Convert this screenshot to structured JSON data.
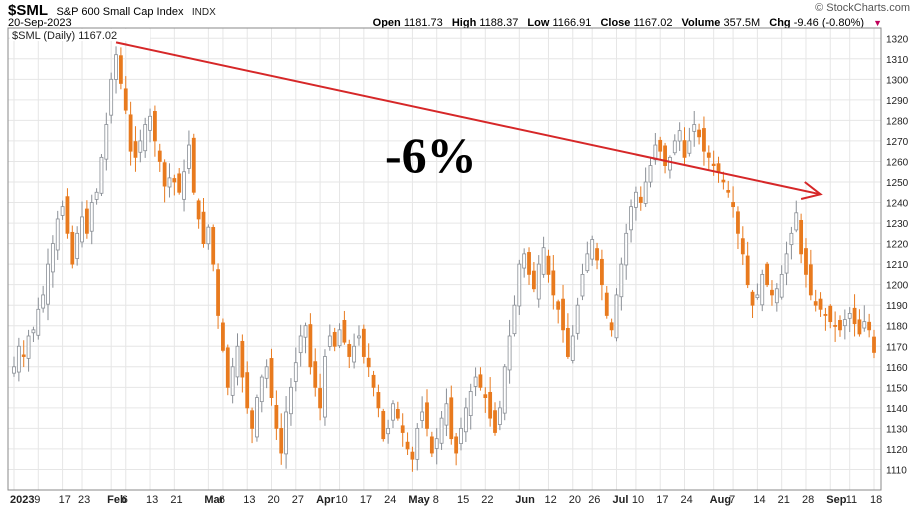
{
  "header": {
    "symbol": "$SML",
    "name": "S&P 600 Small Cap Index",
    "exchange": "INDX",
    "date": "20-Sep-2023",
    "watermark": "© StockCharts.com",
    "open_label": "Open",
    "open": "1181.73",
    "high_label": "High",
    "high": "1188.37",
    "low_label": "Low",
    "low": "1166.91",
    "close_label": "Close",
    "close": "1167.02",
    "volume_label": "Volume",
    "volume": "357.5M",
    "chg_label": "Chg",
    "chg": "-9.46 (-0.80%)"
  },
  "colors": {
    "up": "#b8bcc2",
    "down": "#e87a1e",
    "arrow": "#d62728",
    "grid": "#e6e6e6"
  },
  "chart_data": {
    "type": "candlestick",
    "legend": "$SML (Daily) 1167.02",
    "annotation": "-6%",
    "ylim": [
      1100,
      1325
    ],
    "y_ticks": [
      1110,
      1120,
      1130,
      1140,
      1150,
      1160,
      1170,
      1180,
      1190,
      1200,
      1210,
      1220,
      1230,
      1240,
      1250,
      1260,
      1270,
      1280,
      1290,
      1300,
      1310,
      1320
    ],
    "x_tick_labels": [
      {
        "label": "2023",
        "bold": true,
        "bar": 0
      },
      {
        "label": "9",
        "bar": 5
      },
      {
        "label": "17",
        "bar": 10
      },
      {
        "label": "23",
        "bar": 14
      },
      {
        "label": "Feb",
        "bold": true,
        "bar": 20
      },
      {
        "label": "6",
        "bar": 23
      },
      {
        "label": "13",
        "bar": 28
      },
      {
        "label": "21",
        "bar": 33
      },
      {
        "label": "Mar",
        "bold": true,
        "bar": 40
      },
      {
        "label": "6",
        "bar": 43
      },
      {
        "label": "13",
        "bar": 48
      },
      {
        "label": "20",
        "bar": 53
      },
      {
        "label": "27",
        "bar": 58
      },
      {
        "label": "Apr",
        "bold": true,
        "bar": 63
      },
      {
        "label": "10",
        "bar": 67
      },
      {
        "label": "17",
        "bar": 72
      },
      {
        "label": "24",
        "bar": 77
      },
      {
        "label": "May",
        "bold": true,
        "bar": 82
      },
      {
        "label": "8",
        "bar": 87
      },
      {
        "label": "15",
        "bar": 92
      },
      {
        "label": "22",
        "bar": 97
      },
      {
        "label": "Jun",
        "bold": true,
        "bar": 104
      },
      {
        "label": "12",
        "bar": 110
      },
      {
        "label": "20",
        "bar": 115
      },
      {
        "label": "26",
        "bar": 119
      },
      {
        "label": "Jul",
        "bold": true,
        "bar": 124
      },
      {
        "label": "10",
        "bar": 128
      },
      {
        "label": "17",
        "bar": 133
      },
      {
        "label": "24",
        "bar": 138
      },
      {
        "label": "Aug",
        "bold": true,
        "bar": 144
      },
      {
        "label": "7",
        "bar": 148
      },
      {
        "label": "14",
        "bar": 153
      },
      {
        "label": "21",
        "bar": 158
      },
      {
        "label": "28",
        "bar": 163
      },
      {
        "label": "Sep",
        "bold": true,
        "bar": 168
      },
      {
        "label": "11",
        "bar": 172
      },
      {
        "label": "18",
        "bar": 177
      }
    ],
    "trendline": {
      "from": {
        "bar": 21,
        "value": 1318
      },
      "to": {
        "bar": 166,
        "value": 1244
      }
    },
    "anchors": [
      [
        0,
        1160
      ],
      [
        1,
        1170
      ],
      [
        2,
        1165
      ],
      [
        3,
        1175
      ],
      [
        4,
        1178
      ],
      [
        5,
        1188
      ],
      [
        6,
        1195
      ],
      [
        7,
        1210
      ],
      [
        8,
        1220
      ],
      [
        9,
        1232
      ],
      [
        10,
        1238
      ],
      [
        11,
        1225
      ],
      [
        12,
        1210
      ],
      [
        13,
        1225
      ],
      [
        14,
        1233
      ],
      [
        15,
        1225
      ],
      [
        16,
        1240
      ],
      [
        17,
        1245
      ],
      [
        18,
        1262
      ],
      [
        19,
        1278
      ],
      [
        20,
        1300
      ],
      [
        21,
        1312
      ],
      [
        22,
        1298
      ],
      [
        23,
        1285
      ],
      [
        24,
        1265
      ],
      [
        25,
        1262
      ],
      [
        26,
        1270
      ],
      [
        27,
        1278
      ],
      [
        28,
        1282
      ],
      [
        29,
        1270
      ],
      [
        30,
        1260
      ],
      [
        31,
        1248
      ],
      [
        32,
        1252
      ],
      [
        33,
        1250
      ],
      [
        34,
        1245
      ],
      [
        35,
        1255
      ],
      [
        36,
        1268
      ],
      [
        37,
        1245
      ],
      [
        38,
        1232
      ],
      [
        39,
        1220
      ],
      [
        40,
        1228
      ],
      [
        41,
        1210
      ],
      [
        42,
        1185
      ],
      [
        43,
        1168
      ],
      [
        44,
        1150
      ],
      [
        45,
        1160
      ],
      [
        46,
        1170
      ],
      [
        47,
        1155
      ],
      [
        48,
        1140
      ],
      [
        49,
        1130
      ],
      [
        50,
        1145
      ],
      [
        51,
        1155
      ],
      [
        52,
        1160
      ],
      [
        53,
        1145
      ],
      [
        54,
        1130
      ],
      [
        55,
        1118
      ],
      [
        56,
        1138
      ],
      [
        57,
        1150
      ],
      [
        58,
        1162
      ],
      [
        59,
        1175
      ],
      [
        60,
        1180
      ],
      [
        61,
        1160
      ],
      [
        62,
        1150
      ],
      [
        63,
        1140
      ],
      [
        64,
        1165
      ],
      [
        65,
        1175
      ],
      [
        66,
        1170
      ],
      [
        67,
        1178
      ],
      [
        68,
        1172
      ],
      [
        69,
        1165
      ],
      [
        70,
        1170
      ],
      [
        71,
        1175
      ],
      [
        72,
        1165
      ],
      [
        73,
        1160
      ],
      [
        74,
        1150
      ],
      [
        75,
        1140
      ],
      [
        76,
        1125
      ],
      [
        77,
        1130
      ],
      [
        78,
        1142
      ],
      [
        79,
        1135
      ],
      [
        80,
        1128
      ],
      [
        81,
        1120
      ],
      [
        82,
        1115
      ],
      [
        83,
        1130
      ],
      [
        84,
        1138
      ],
      [
        85,
        1130
      ],
      [
        86,
        1118
      ],
      [
        87,
        1125
      ],
      [
        88,
        1135
      ],
      [
        89,
        1142
      ],
      [
        90,
        1125
      ],
      [
        91,
        1118
      ],
      [
        92,
        1130
      ],
      [
        93,
        1140
      ],
      [
        94,
        1148
      ],
      [
        95,
        1155
      ],
      [
        96,
        1150
      ],
      [
        97,
        1145
      ],
      [
        98,
        1135
      ],
      [
        99,
        1128
      ],
      [
        100,
        1140
      ],
      [
        101,
        1160
      ],
      [
        102,
        1175
      ],
      [
        103,
        1190
      ],
      [
        104,
        1210
      ],
      [
        105,
        1215
      ],
      [
        106,
        1205
      ],
      [
        107,
        1198
      ],
      [
        108,
        1210
      ],
      [
        109,
        1218
      ],
      [
        110,
        1205
      ],
      [
        111,
        1195
      ],
      [
        112,
        1188
      ],
      [
        113,
        1178
      ],
      [
        114,
        1165
      ],
      [
        115,
        1175
      ],
      [
        116,
        1190
      ],
      [
        117,
        1205
      ],
      [
        118,
        1215
      ],
      [
        119,
        1222
      ],
      [
        120,
        1212
      ],
      [
        121,
        1200
      ],
      [
        122,
        1185
      ],
      [
        123,
        1178
      ],
      [
        124,
        1195
      ],
      [
        125,
        1210
      ],
      [
        126,
        1225
      ],
      [
        127,
        1238
      ],
      [
        128,
        1245
      ],
      [
        129,
        1240
      ],
      [
        130,
        1250
      ],
      [
        131,
        1258
      ],
      [
        132,
        1268
      ],
      [
        133,
        1265
      ],
      [
        134,
        1258
      ],
      [
        135,
        1262
      ],
      [
        136,
        1270
      ],
      [
        137,
        1275
      ],
      [
        138,
        1262
      ],
      [
        139,
        1270
      ],
      [
        140,
        1278
      ],
      [
        141,
        1272
      ],
      [
        142,
        1265
      ],
      [
        143,
        1262
      ],
      [
        144,
        1258
      ],
      [
        145,
        1255
      ],
      [
        146,
        1250
      ],
      [
        147,
        1245
      ],
      [
        148,
        1238
      ],
      [
        149,
        1225
      ],
      [
        150,
        1215
      ],
      [
        151,
        1200
      ],
      [
        152,
        1190
      ],
      [
        153,
        1195
      ],
      [
        154,
        1205
      ],
      [
        155,
        1200
      ],
      [
        156,
        1195
      ],
      [
        157,
        1198
      ],
      [
        158,
        1205
      ],
      [
        159,
        1215
      ],
      [
        160,
        1225
      ],
      [
        161,
        1235
      ],
      [
        162,
        1215
      ],
      [
        163,
        1205
      ],
      [
        164,
        1195
      ],
      [
        165,
        1190
      ],
      [
        166,
        1188
      ],
      [
        167,
        1185
      ],
      [
        168,
        1182
      ],
      [
        169,
        1180
      ],
      [
        170,
        1178
      ],
      [
        171,
        1183
      ],
      [
        172,
        1186
      ],
      [
        173,
        1181
      ],
      [
        174,
        1176
      ],
      [
        175,
        1182
      ],
      [
        176,
        1178
      ],
      [
        177,
        1167
      ]
    ]
  }
}
